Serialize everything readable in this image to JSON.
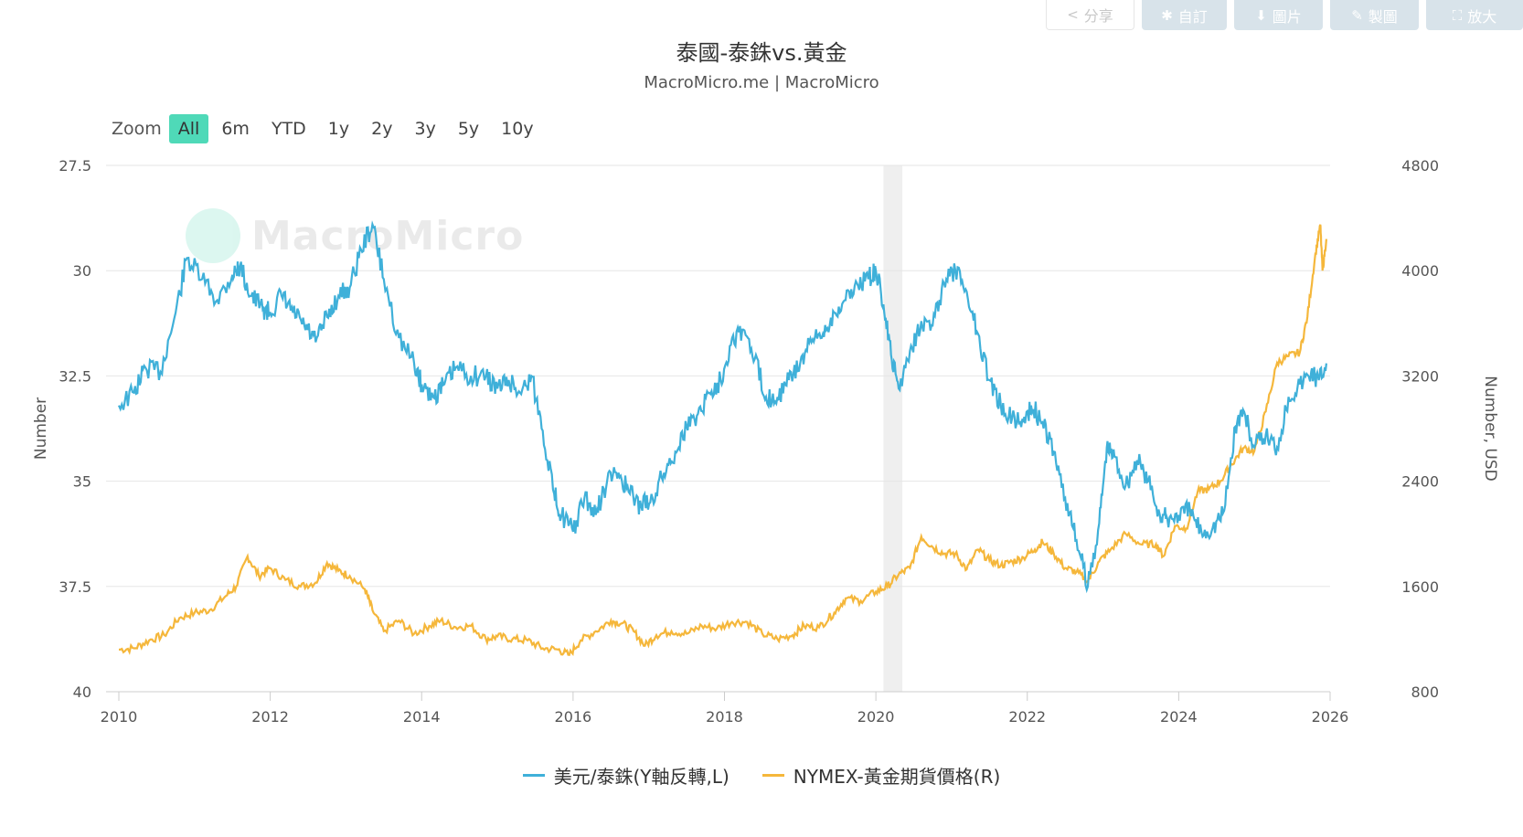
{
  "toolbar": {
    "share_label": "分享",
    "customize_label": "自訂",
    "image_label": "圖片",
    "make_label": "製圖",
    "enlarge_label": "放大"
  },
  "zoom": {
    "label": "Zoom",
    "options": [
      "All",
      "6m",
      "YTD",
      "1y",
      "2y",
      "3y",
      "5y",
      "10y"
    ],
    "active": "All"
  },
  "watermark_text": "MacroMicro",
  "colors": {
    "series_1": "#3fb0d9",
    "series_2": "#f5b73b",
    "shade": "#efefef",
    "grid": "#e6e6e6",
    "zoom_active": "#4fd9b8"
  },
  "chart_data": {
    "type": "line",
    "title": "泰國-泰銖vs.黃金",
    "subtitle": "MacroMicro.me | MacroMicro",
    "x_ticks": [
      "2010",
      "2012",
      "2014",
      "2016",
      "2018",
      "2020",
      "2022",
      "2024",
      "2026"
    ],
    "xlim": [
      2010,
      2026
    ],
    "left_axis": {
      "label": "Number",
      "ticks": [
        "27.5",
        "30",
        "32.5",
        "35",
        "37.5",
        "40"
      ],
      "range": [
        27.5,
        40
      ],
      "inverted": true
    },
    "right_axis": {
      "label": "Number, USD",
      "ticks": [
        "4800",
        "4000",
        "3200",
        "2400",
        "1600",
        "800"
      ],
      "range": [
        800,
        4800
      ]
    },
    "shaded_period": [
      2020.1,
      2020.35
    ],
    "grid": true,
    "legend_position": "bottom",
    "series": [
      {
        "name": "美元/泰銖(Y軸反轉,L)",
        "axis": "left",
        "points": [
          [
            2010.0,
            33.2
          ],
          [
            2010.2,
            32.9
          ],
          [
            2010.35,
            32.3
          ],
          [
            2010.55,
            32.4
          ],
          [
            2010.75,
            31.0
          ],
          [
            2010.9,
            29.7
          ],
          [
            2011.1,
            30.2
          ],
          [
            2011.3,
            30.7
          ],
          [
            2011.5,
            30.1
          ],
          [
            2011.6,
            29.9
          ],
          [
            2011.75,
            30.6
          ],
          [
            2011.9,
            30.9
          ],
          [
            2012.0,
            31.0
          ],
          [
            2012.15,
            30.6
          ],
          [
            2012.3,
            31.0
          ],
          [
            2012.45,
            31.3
          ],
          [
            2012.6,
            31.7
          ],
          [
            2012.75,
            31.1
          ],
          [
            2012.9,
            30.6
          ],
          [
            2013.05,
            30.4
          ],
          [
            2013.2,
            29.5
          ],
          [
            2013.35,
            28.9
          ],
          [
            2013.5,
            30.2
          ],
          [
            2013.7,
            31.6
          ],
          [
            2013.9,
            32.2
          ],
          [
            2014.0,
            32.7
          ],
          [
            2014.15,
            33.0
          ],
          [
            2014.3,
            32.7
          ],
          [
            2014.45,
            32.3
          ],
          [
            2014.65,
            32.5
          ],
          [
            2014.85,
            32.5
          ],
          [
            2015.0,
            32.8
          ],
          [
            2015.15,
            32.6
          ],
          [
            2015.3,
            32.9
          ],
          [
            2015.45,
            32.5
          ],
          [
            2015.6,
            33.8
          ],
          [
            2015.75,
            35.3
          ],
          [
            2015.85,
            35.8
          ],
          [
            2016.0,
            36.2
          ],
          [
            2016.15,
            35.4
          ],
          [
            2016.3,
            35.8
          ],
          [
            2016.45,
            35.0
          ],
          [
            2016.6,
            34.8
          ],
          [
            2016.75,
            35.3
          ],
          [
            2016.9,
            35.6
          ],
          [
            2017.05,
            35.4
          ],
          [
            2017.2,
            34.8
          ],
          [
            2017.35,
            34.3
          ],
          [
            2017.5,
            33.7
          ],
          [
            2017.65,
            33.4
          ],
          [
            2017.8,
            32.9
          ],
          [
            2017.95,
            32.6
          ],
          [
            2018.1,
            31.6
          ],
          [
            2018.25,
            31.4
          ],
          [
            2018.4,
            32.1
          ],
          [
            2018.55,
            33.0
          ],
          [
            2018.7,
            33.0
          ],
          [
            2018.85,
            32.6
          ],
          [
            2019.0,
            32.2
          ],
          [
            2019.15,
            31.7
          ],
          [
            2019.3,
            31.5
          ],
          [
            2019.45,
            31.0
          ],
          [
            2019.6,
            30.7
          ],
          [
            2019.75,
            30.3
          ],
          [
            2019.9,
            30.2
          ],
          [
            2020.0,
            30.0
          ],
          [
            2020.1,
            30.8
          ],
          [
            2020.2,
            32.0
          ],
          [
            2020.3,
            32.8
          ],
          [
            2020.45,
            31.9
          ],
          [
            2020.6,
            31.2
          ],
          [
            2020.75,
            31.3
          ],
          [
            2020.9,
            30.3
          ],
          [
            2021.05,
            30.0
          ],
          [
            2021.2,
            30.5
          ],
          [
            2021.35,
            31.5
          ],
          [
            2021.5,
            32.6
          ],
          [
            2021.65,
            33.2
          ],
          [
            2021.8,
            33.5
          ],
          [
            2021.95,
            33.6
          ],
          [
            2022.05,
            33.2
          ],
          [
            2022.2,
            33.6
          ],
          [
            2022.35,
            34.3
          ],
          [
            2022.5,
            35.4
          ],
          [
            2022.65,
            36.4
          ],
          [
            2022.8,
            37.5
          ],
          [
            2022.95,
            36.0
          ],
          [
            2023.05,
            34.2
          ],
          [
            2023.15,
            34.4
          ],
          [
            2023.3,
            35.1
          ],
          [
            2023.45,
            34.5
          ],
          [
            2023.6,
            35.0
          ],
          [
            2023.75,
            35.8
          ],
          [
            2023.85,
            35.9
          ],
          [
            2024.0,
            35.8
          ],
          [
            2024.15,
            35.7
          ],
          [
            2024.3,
            36.2
          ],
          [
            2024.45,
            36.1
          ],
          [
            2024.6,
            35.7
          ],
          [
            2024.75,
            33.7
          ],
          [
            2024.85,
            33.3
          ],
          [
            2025.0,
            34.2
          ],
          [
            2025.15,
            33.9
          ],
          [
            2025.3,
            34.2
          ],
          [
            2025.45,
            33.0
          ],
          [
            2025.6,
            32.7
          ],
          [
            2025.75,
            32.4
          ],
          [
            2025.85,
            32.6
          ],
          [
            2025.95,
            32.2
          ]
        ]
      },
      {
        "name": "NYMEX-黃金期貨價格(R)",
        "axis": "right",
        "points": [
          [
            2010.0,
            1120
          ],
          [
            2010.2,
            1130
          ],
          [
            2010.4,
            1190
          ],
          [
            2010.6,
            1230
          ],
          [
            2010.8,
            1360
          ],
          [
            2011.0,
            1400
          ],
          [
            2011.2,
            1420
          ],
          [
            2011.4,
            1520
          ],
          [
            2011.55,
            1600
          ],
          [
            2011.7,
            1830
          ],
          [
            2011.85,
            1680
          ],
          [
            2012.0,
            1740
          ],
          [
            2012.2,
            1650
          ],
          [
            2012.4,
            1600
          ],
          [
            2012.6,
            1630
          ],
          [
            2012.75,
            1780
          ],
          [
            2012.9,
            1720
          ],
          [
            2013.05,
            1680
          ],
          [
            2013.25,
            1580
          ],
          [
            2013.35,
            1420
          ],
          [
            2013.5,
            1260
          ],
          [
            2013.7,
            1340
          ],
          [
            2013.9,
            1240
          ],
          [
            2014.1,
            1300
          ],
          [
            2014.25,
            1340
          ],
          [
            2014.45,
            1290
          ],
          [
            2014.65,
            1300
          ],
          [
            2014.85,
            1200
          ],
          [
            2015.0,
            1220
          ],
          [
            2015.2,
            1200
          ],
          [
            2015.4,
            1190
          ],
          [
            2015.6,
            1130
          ],
          [
            2015.8,
            1120
          ],
          [
            2015.95,
            1080
          ],
          [
            2016.1,
            1190
          ],
          [
            2016.3,
            1260
          ],
          [
            2016.5,
            1340
          ],
          [
            2016.65,
            1320
          ],
          [
            2016.8,
            1260
          ],
          [
            2016.95,
            1150
          ],
          [
            2017.1,
            1230
          ],
          [
            2017.3,
            1260
          ],
          [
            2017.5,
            1240
          ],
          [
            2017.7,
            1300
          ],
          [
            2017.9,
            1280
          ],
          [
            2018.1,
            1330
          ],
          [
            2018.3,
            1330
          ],
          [
            2018.5,
            1240
          ],
          [
            2018.7,
            1200
          ],
          [
            2018.9,
            1230
          ],
          [
            2019.05,
            1300
          ],
          [
            2019.25,
            1290
          ],
          [
            2019.45,
            1400
          ],
          [
            2019.6,
            1510
          ],
          [
            2019.8,
            1490
          ],
          [
            2020.0,
            1560
          ],
          [
            2020.15,
            1600
          ],
          [
            2020.3,
            1690
          ],
          [
            2020.45,
            1740
          ],
          [
            2020.6,
            1980
          ],
          [
            2020.75,
            1900
          ],
          [
            2020.9,
            1850
          ],
          [
            2021.05,
            1850
          ],
          [
            2021.2,
            1730
          ],
          [
            2021.35,
            1880
          ],
          [
            2021.5,
            1800
          ],
          [
            2021.65,
            1760
          ],
          [
            2021.8,
            1790
          ],
          [
            2021.95,
            1820
          ],
          [
            2022.1,
            1880
          ],
          [
            2022.2,
            1940
          ],
          [
            2022.35,
            1850
          ],
          [
            2022.5,
            1740
          ],
          [
            2022.65,
            1710
          ],
          [
            2022.8,
            1640
          ],
          [
            2022.95,
            1790
          ],
          [
            2023.1,
            1880
          ],
          [
            2023.3,
            2000
          ],
          [
            2023.5,
            1920
          ],
          [
            2023.7,
            1920
          ],
          [
            2023.8,
            1830
          ],
          [
            2023.95,
            2060
          ],
          [
            2024.1,
            2040
          ],
          [
            2024.25,
            2320
          ],
          [
            2024.4,
            2340
          ],
          [
            2024.55,
            2400
          ],
          [
            2024.7,
            2530
          ],
          [
            2024.85,
            2650
          ],
          [
            2025.0,
            2630
          ],
          [
            2025.15,
            2930
          ],
          [
            2025.3,
            3300
          ],
          [
            2025.45,
            3350
          ],
          [
            2025.6,
            3380
          ],
          [
            2025.7,
            3650
          ],
          [
            2025.8,
            4100
          ],
          [
            2025.87,
            4350
          ],
          [
            2025.9,
            4000
          ],
          [
            2025.95,
            4240
          ]
        ]
      }
    ]
  }
}
